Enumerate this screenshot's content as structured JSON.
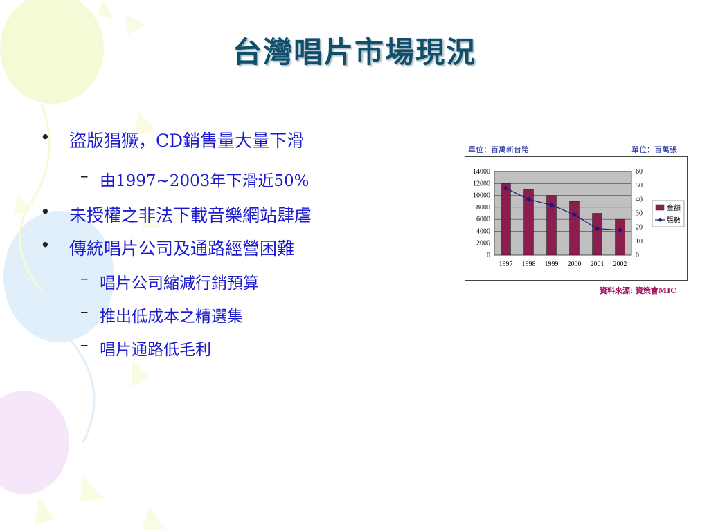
{
  "slide": {
    "title": "台灣唱片市場現況",
    "bullets": [
      {
        "level": 1,
        "marker": "•",
        "text": "盜版猖獗，CD銷售量大量下滑"
      },
      {
        "level": 2,
        "marker": "–",
        "text": "由1997~2003年下滑近50%"
      },
      {
        "level": 1,
        "marker": "•",
        "text": "未授權之非法下載音樂網站肆虐"
      },
      {
        "level": 1,
        "marker": "•",
        "text": "傳統唱片公司及通路經營困難"
      },
      {
        "level": 2,
        "marker": "–",
        "text": "唱片公司縮減行銷預算"
      },
      {
        "level": 2,
        "marker": "–",
        "text": "推出低成本之精選集"
      },
      {
        "level": 2,
        "marker": "–",
        "text": "唱片通路低毛利"
      }
    ],
    "colors": {
      "title": "#0f4f6a",
      "bullet_text": "#1c1ccc",
      "bar": "#8b1e4f",
      "line": "#1a1a7a",
      "plot_bg": "#c0c0c0"
    }
  },
  "chart_meta": {
    "unit_left": "單位：百萬新台幣",
    "unit_right": "單位：百萬張",
    "source": "資料來源: 資策會MIC"
  },
  "chart_data": {
    "type": "bar",
    "categories": [
      "1997",
      "1998",
      "1999",
      "2000",
      "2001",
      "2002"
    ],
    "series": [
      {
        "name": "金額",
        "type": "bar",
        "axis": "left",
        "values": [
          12000,
          11000,
          10000,
          9000,
          7000,
          6000
        ]
      },
      {
        "name": "張數",
        "type": "line",
        "axis": "right",
        "values": [
          48,
          40,
          36,
          29,
          19,
          18
        ]
      }
    ],
    "y_left": {
      "ylim": [
        0,
        14000
      ],
      "ticks": [
        "14000",
        "12000",
        "10000",
        "8000",
        "6000",
        "4000",
        "2000",
        "0"
      ]
    },
    "y_right": {
      "ylim": [
        0,
        60
      ],
      "ticks": [
        "60",
        "50",
        "40",
        "30",
        "20",
        "10",
        "0"
      ]
    },
    "grid": "horizontal",
    "legend": "right"
  }
}
